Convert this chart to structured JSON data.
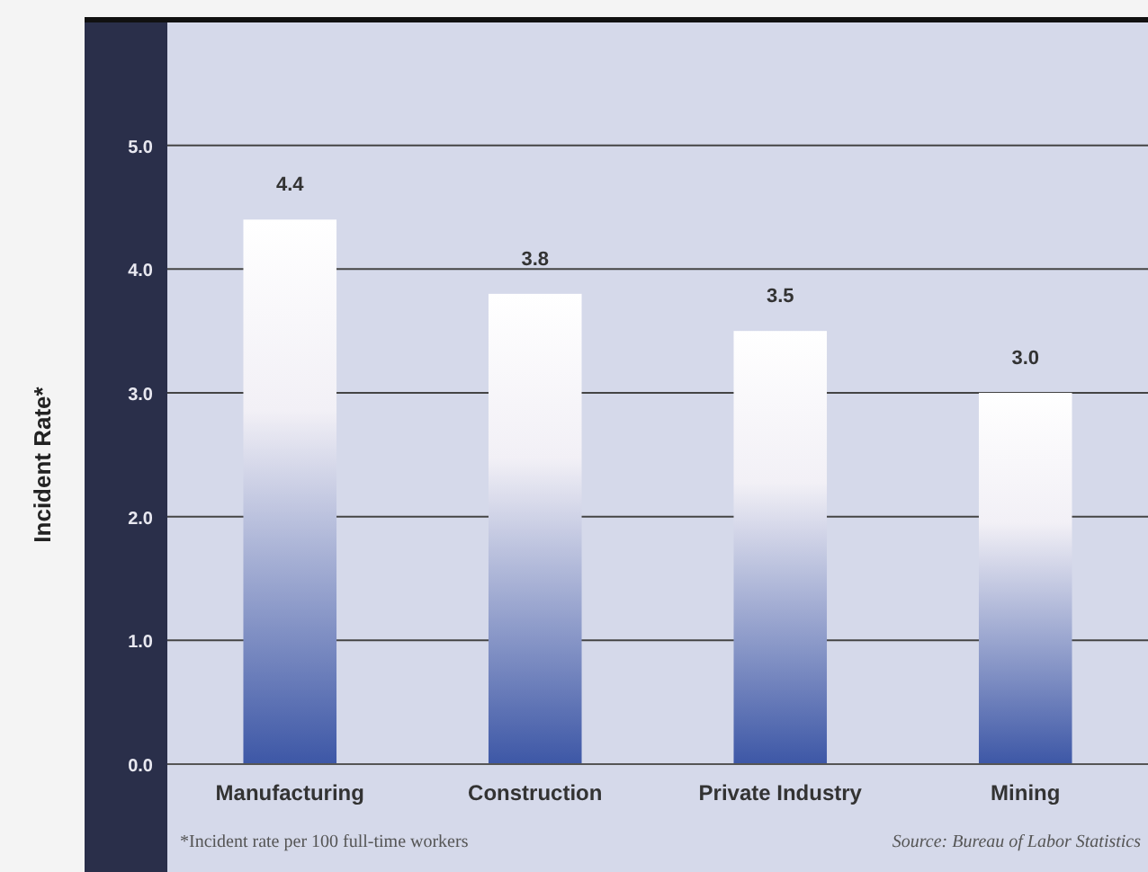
{
  "chart_data": {
    "type": "bar",
    "ylabel": "Incident Rate*",
    "categories": [
      "Manufacturing",
      "Construction",
      "Private Industry",
      "Mining"
    ],
    "values": [
      4.4,
      3.8,
      3.5,
      3.0
    ],
    "color": "#3d57a6",
    "ylim": [
      0,
      6
    ],
    "yticks": [
      {
        "value": 0,
        "label": "0.0"
      },
      {
        "value": 1,
        "label": "1.0"
      },
      {
        "value": 2,
        "label": "2.0"
      },
      {
        "value": 3,
        "label": "3.0"
      },
      {
        "value": 4,
        "label": "4.0"
      },
      {
        "value": 5,
        "label": "5.0"
      }
    ],
    "grid": "y",
    "value_labels": [
      "4.4",
      "3.8",
      "3.5",
      "3.0"
    ],
    "annotations": [
      "*Incident rate per 100 full-time workers",
      "Source: Bureau of Labor Statistics"
    ]
  }
}
